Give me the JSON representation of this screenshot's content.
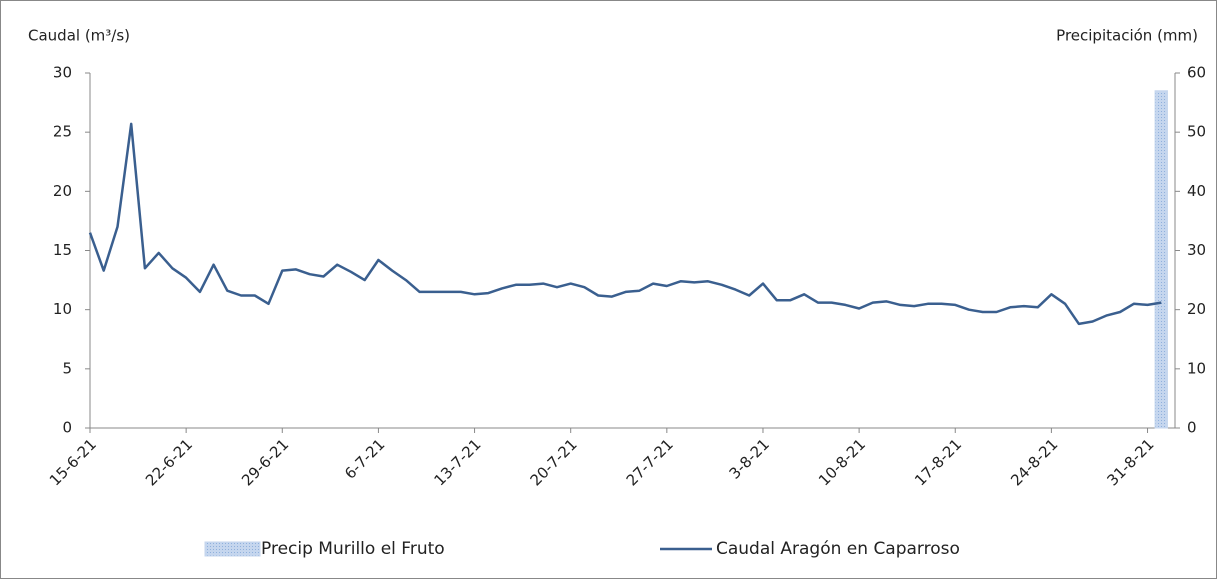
{
  "chart_data": {
    "type": "bar-line",
    "y_label": "Caudal (m³/s)",
    "y2_label": "Precipitación (mm)",
    "categories": [
      "15-6-21",
      null,
      null,
      null,
      null,
      null,
      null,
      "22-6-21",
      null,
      null,
      null,
      null,
      null,
      null,
      "29-6-21",
      null,
      null,
      null,
      null,
      null,
      null,
      "6-7-21",
      null,
      null,
      null,
      null,
      null,
      null,
      "13-7-21",
      null,
      null,
      null,
      null,
      null,
      null,
      "20-7-21",
      null,
      null,
      null,
      null,
      null,
      null,
      "27-7-21",
      null,
      null,
      null,
      null,
      null,
      null,
      "3-8-21",
      null,
      null,
      null,
      null,
      null,
      null,
      "10-8-21",
      null,
      null,
      null,
      null,
      null,
      null,
      "17-8-21",
      null,
      null,
      null,
      null,
      null,
      null,
      "24-8-21",
      null,
      null,
      null,
      null,
      null,
      null,
      "31-8-21",
      null
    ],
    "series": [
      {
        "name": "Precip Murillo el Fruto",
        "type": "bar",
        "axis": "y2",
        "color": "#c5d6ee",
        "values": [
          null,
          null,
          null,
          null,
          null,
          null,
          null,
          null,
          null,
          null,
          null,
          null,
          null,
          null,
          null,
          null,
          null,
          null,
          null,
          null,
          null,
          null,
          null,
          null,
          null,
          null,
          null,
          null,
          null,
          null,
          null,
          null,
          null,
          null,
          null,
          null,
          null,
          null,
          null,
          null,
          null,
          null,
          null,
          null,
          null,
          null,
          null,
          null,
          null,
          null,
          null,
          null,
          null,
          null,
          null,
          null,
          null,
          null,
          null,
          null,
          null,
          null,
          null,
          null,
          null,
          null,
          null,
          null,
          null,
          null,
          null,
          null,
          null,
          null,
          null,
          null,
          null,
          null,
          57
        ]
      },
      {
        "name": "Caudal Aragón en Caparroso",
        "type": "line",
        "color": "#3a5f8f",
        "values": [
          16.5,
          13.3,
          17,
          25.7,
          13.5,
          14.8,
          13.5,
          12.7,
          11.5,
          13.8,
          11.6,
          11.2,
          11.2,
          10.5,
          13.3,
          13.4,
          13,
          12.8,
          13.8,
          13.2,
          12.5,
          14.2,
          13.3,
          12.5,
          11.5,
          11.5,
          11.5,
          11.5,
          11.3,
          11.4,
          11.8,
          12.1,
          12.1,
          12.2,
          11.9,
          12.2,
          11.9,
          11.2,
          11.1,
          11.5,
          11.6,
          12.2,
          12,
          12.4,
          12.3,
          12.4,
          12.1,
          11.7,
          11.2,
          12.2,
          10.8,
          10.8,
          11.3,
          10.6,
          10.6,
          10.4,
          10.1,
          10.6,
          10.7,
          10.4,
          10.3,
          10.5,
          10.5,
          10.4,
          10,
          9.8,
          9.8,
          10.2,
          10.3,
          10.2,
          11.3,
          10.5,
          8.8,
          9,
          9.5,
          9.8,
          10.5,
          10.4,
          10.6
        ]
      }
    ],
    "ylim": [
      0,
      30
    ],
    "yticks": [
      0,
      5,
      10,
      15,
      20,
      25,
      30
    ],
    "y2lim": [
      0,
      60
    ],
    "y2ticks": [
      0,
      10,
      20,
      30,
      40,
      50,
      60
    ],
    "legend": "bottom"
  }
}
